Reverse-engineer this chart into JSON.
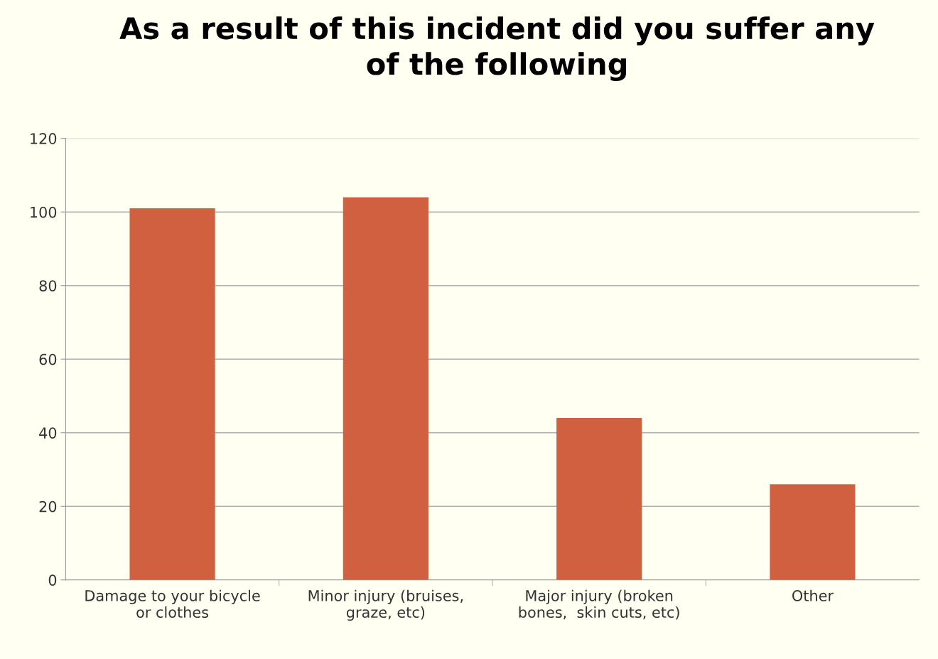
{
  "chart_data": {
    "type": "bar",
    "title": "As a result of this incident did you suffer any\nof the following",
    "categories": [
      "Damage to your bicycle\nor clothes",
      "Minor injury (bruises,\ngraze, etc)",
      "Major injury (broken\nbones,  skin cuts, etc)",
      "Other"
    ],
    "values": [
      101,
      104,
      44,
      26
    ],
    "color": "#d0603f",
    "ylim": [
      0,
      120
    ],
    "yticks": [
      0,
      20,
      40,
      60,
      80,
      100,
      120
    ],
    "grid": "y"
  }
}
